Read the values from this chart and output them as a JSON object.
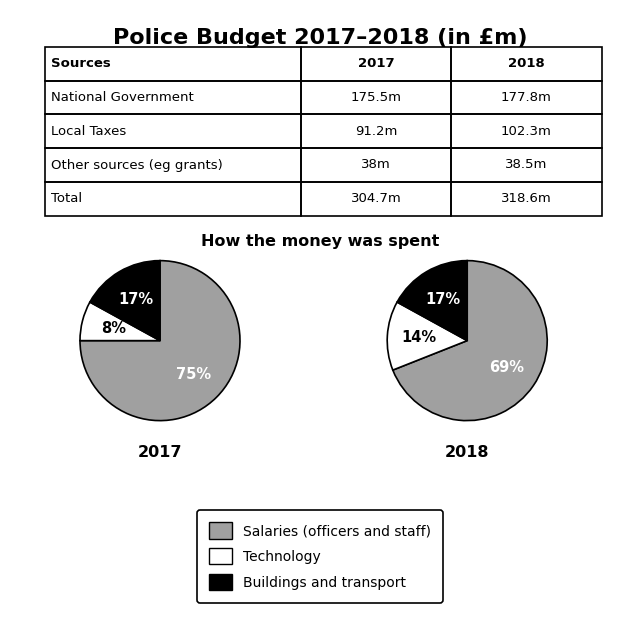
{
  "title": "Police Budget 2017–2018 (in £m)",
  "table": {
    "headers": [
      "Sources",
      "2017",
      "2018"
    ],
    "rows": [
      [
        "National Government",
        "175.5m",
        "177.8m"
      ],
      [
        "Local Taxes",
        "91.2m",
        "102.3m"
      ],
      [
        "Other sources (eg grants)",
        "38m",
        "38.5m"
      ],
      [
        "Total",
        "304.7m",
        "318.6m"
      ]
    ]
  },
  "pie_title": "How the money was spent",
  "pie_2017": {
    "label": "2017",
    "values": [
      75,
      8,
      17
    ],
    "colors": [
      "#a0a0a0",
      "#ffffff",
      "#000000"
    ],
    "labels": [
      "75%",
      "8%",
      "17%"
    ],
    "label_colors": [
      "white",
      "black",
      "white"
    ],
    "startangle": 90,
    "counterclock": false
  },
  "pie_2018": {
    "label": "2018",
    "values": [
      69,
      14,
      17
    ],
    "colors": [
      "#a0a0a0",
      "#ffffff",
      "#000000"
    ],
    "labels": [
      "69%",
      "14%",
      "17%"
    ],
    "label_colors": [
      "white",
      "black",
      "white"
    ],
    "startangle": 90,
    "counterclock": false
  },
  "legend_labels": [
    "Salaries (officers and staff)",
    "Technology",
    "Buildings and transport"
  ],
  "legend_colors": [
    "#a0a0a0",
    "#ffffff",
    "#000000"
  ],
  "background_color": "#ffffff",
  "fig_width": 6.4,
  "fig_height": 6.25,
  "dpi": 100
}
